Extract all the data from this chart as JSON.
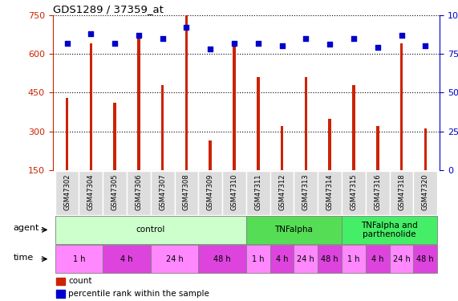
{
  "title": "GDS1289 / 37359_at",
  "samples": [
    "GSM47302",
    "GSM47304",
    "GSM47305",
    "GSM47306",
    "GSM47307",
    "GSM47308",
    "GSM47309",
    "GSM47310",
    "GSM47311",
    "GSM47312",
    "GSM47313",
    "GSM47314",
    "GSM47315",
    "GSM47316",
    "GSM47318",
    "GSM47320"
  ],
  "counts": [
    430,
    640,
    410,
    660,
    480,
    750,
    265,
    635,
    510,
    320,
    510,
    350,
    480,
    320,
    640,
    310
  ],
  "percentiles": [
    82,
    88,
    82,
    87,
    85,
    92,
    78,
    82,
    82,
    80,
    85,
    81,
    85,
    79,
    87,
    80
  ],
  "bar_color": "#cc2200",
  "dot_color": "#0000cc",
  "ylim_left": [
    150,
    750
  ],
  "ylim_right": [
    0,
    100
  ],
  "yticks_left": [
    150,
    300,
    450,
    600,
    750
  ],
  "yticks_right": [
    0,
    25,
    50,
    75,
    100
  ],
  "agent_groups": [
    {
      "label": "control",
      "start": 0,
      "end": 7,
      "color": "#ccffcc"
    },
    {
      "label": "TNFalpha",
      "start": 8,
      "end": 11,
      "color": "#55dd55"
    },
    {
      "label": "TNFalpha and\nparthenolide",
      "start": 12,
      "end": 15,
      "color": "#44ee66"
    }
  ],
  "time_groups": [
    {
      "label": "1 h",
      "start": 0,
      "end": 1,
      "color": "#ff88ff"
    },
    {
      "label": "4 h",
      "start": 2,
      "end": 3,
      "color": "#dd44dd"
    },
    {
      "label": "24 h",
      "start": 4,
      "end": 5,
      "color": "#ff88ff"
    },
    {
      "label": "48 h",
      "start": 6,
      "end": 7,
      "color": "#dd44dd"
    },
    {
      "label": "1 h",
      "start": 8,
      "end": 8,
      "color": "#ff88ff"
    },
    {
      "label": "4 h",
      "start": 9,
      "end": 9,
      "color": "#dd44dd"
    },
    {
      "label": "24 h",
      "start": 10,
      "end": 10,
      "color": "#ff88ff"
    },
    {
      "label": "48 h",
      "start": 11,
      "end": 11,
      "color": "#dd44dd"
    },
    {
      "label": "1 h",
      "start": 12,
      "end": 12,
      "color": "#ff88ff"
    },
    {
      "label": "4 h",
      "start": 13,
      "end": 13,
      "color": "#dd44dd"
    },
    {
      "label": "24 h",
      "start": 14,
      "end": 14,
      "color": "#ff88ff"
    },
    {
      "label": "48 h",
      "start": 15,
      "end": 15,
      "color": "#dd44dd"
    }
  ],
  "bar_color_left": "#cc2200",
  "tick_label_color_left": "#cc2200",
  "tick_label_color_right": "#0000cc",
  "background_color": "#ffffff",
  "sample_bg_color": "#dddddd",
  "legend_count_color": "#cc2200",
  "legend_pct_color": "#0000cc"
}
